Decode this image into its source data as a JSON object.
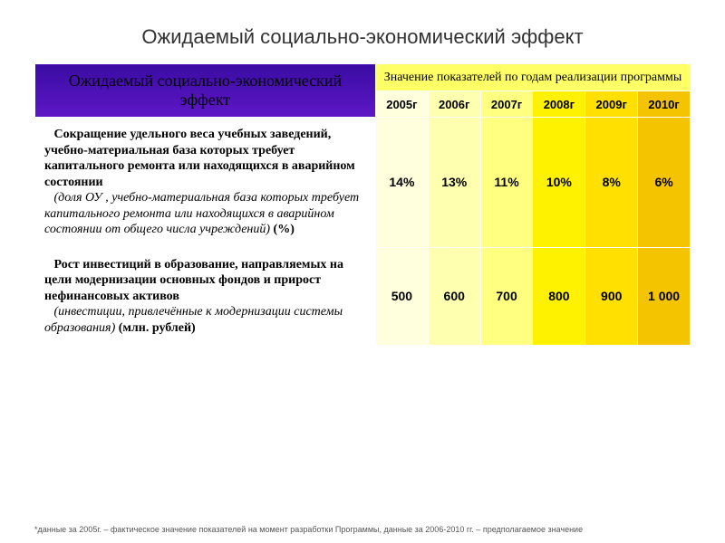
{
  "title": "Ожидаемый социально-экономический эффект",
  "header": {
    "left": "Ожидаемый социально-экономический эффект",
    "right_top": "Значение показателей по годам реализации программы",
    "years": [
      "2005г",
      "2006г",
      "2007г",
      "2008г",
      "2009г",
      "2010г"
    ],
    "left_bg_top": "#3a0ca3",
    "left_bg_bottom": "#5e17c7",
    "right_bg": "#ffff66",
    "year_bg": [
      "#ffffdd",
      "#ffffb0",
      "#ffff80",
      "#fff200",
      "#ffe000",
      "#f5c400"
    ]
  },
  "rows": [
    {
      "bold": "Сокращение удельного веса учебных заведений, учебно-материальная база которых требует капитального ремонта или находящихся в аварийном состоянии",
      "italic": "(доля ОУ , учебно-материальная база которых требует капитального ремонта или находящихся в аварийном состоянии от общего числа учреждений)",
      "tail": "(%)",
      "values": [
        "14%",
        "13%",
        "11%",
        "10%",
        "8%",
        "6%"
      ]
    },
    {
      "bold": "Рост инвестиций в образование, направляемых на цели модернизации основных фондов и прирост нефинансовых активов",
      "italic": "(инвестиции, привлечённые к модернизации системы образования)",
      "tail": "(млн. рублей)",
      "values": [
        "500",
        "600",
        "700",
        "800",
        "900",
        "1 000"
      ]
    }
  ],
  "value_bg": [
    "#ffffdd",
    "#ffffb0",
    "#ffff80",
    "#fff200",
    "#ffe000",
    "#f5c400"
  ],
  "footnote": "*данные за 2005г. – фактическое значение показателей на момент разработки Программы, данные за 2006-2010 гг. – предполагаемое значение",
  "col_widths": {
    "label": "52%",
    "value": "8%"
  }
}
